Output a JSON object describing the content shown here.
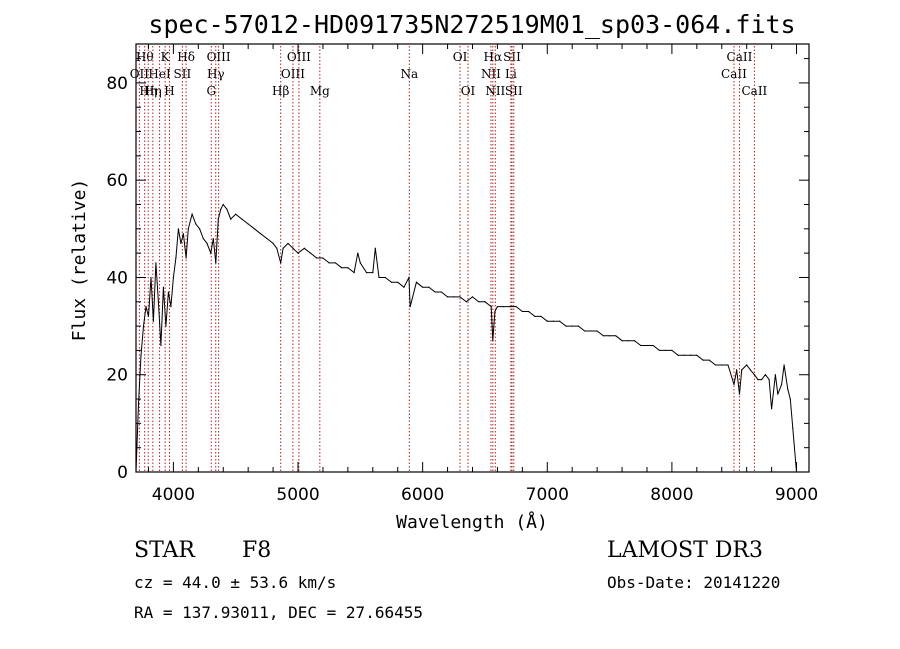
{
  "chart_data": {
    "type": "line",
    "title": "spec-57012-HD091735N272519M01_sp03-064.fits",
    "xlabel": "Wavelength (Å)",
    "ylabel": "Flux (relative)",
    "xlim": [
      3700,
      9100
    ],
    "ylim": [
      0,
      88
    ],
    "x_ticks": [
      4000,
      5000,
      6000,
      7000,
      8000,
      9000
    ],
    "y_ticks": [
      0,
      20,
      40,
      60,
      80
    ],
    "grid": false,
    "series": [
      {
        "name": "flux",
        "x": [
          3700,
          3720,
          3740,
          3760,
          3780,
          3800,
          3820,
          3840,
          3860,
          3880,
          3900,
          3920,
          3940,
          3960,
          3980,
          4000,
          4020,
          4040,
          4060,
          4080,
          4102,
          4120,
          4150,
          4180,
          4210,
          4240,
          4270,
          4300,
          4320,
          4340,
          4360,
          4380,
          4400,
          4430,
          4460,
          4500,
          4550,
          4600,
          4650,
          4700,
          4750,
          4800,
          4830,
          4861,
          4880,
          4920,
          4960,
          5000,
          5050,
          5100,
          5150,
          5200,
          5250,
          5300,
          5350,
          5400,
          5450,
          5480,
          5500,
          5550,
          5600,
          5620,
          5650,
          5700,
          5750,
          5800,
          5850,
          5890,
          5900,
          5950,
          6000,
          6050,
          6100,
          6150,
          6200,
          6250,
          6300,
          6350,
          6400,
          6450,
          6500,
          6550,
          6563,
          6580,
          6600,
          6650,
          6700,
          6750,
          6800,
          6850,
          6900,
          6950,
          7000,
          7050,
          7100,
          7150,
          7200,
          7250,
          7300,
          7350,
          7400,
          7450,
          7500,
          7550,
          7600,
          7650,
          7700,
          7750,
          7800,
          7850,
          7900,
          7950,
          8000,
          8050,
          8100,
          8150,
          8200,
          8250,
          8300,
          8350,
          8400,
          8450,
          8498,
          8520,
          8542,
          8560,
          8600,
          8630,
          8662,
          8690,
          8720,
          8750,
          8780,
          8800,
          8830,
          8850,
          8880,
          8900,
          8930,
          8950,
          8970,
          9000
        ],
        "values": [
          0,
          14,
          24,
          30,
          34,
          32,
          40,
          31,
          43,
          35,
          26,
          38,
          30,
          37,
          34,
          40,
          44,
          50,
          47,
          49,
          44,
          50,
          53,
          51,
          50,
          48,
          47,
          45,
          48,
          43,
          52,
          54,
          55,
          54,
          52,
          53,
          52,
          51,
          50,
          49,
          48,
          47,
          46,
          43,
          46,
          47,
          46,
          45,
          46,
          45,
          44,
          44,
          43,
          43,
          42,
          42,
          41,
          45,
          43,
          41,
          41,
          46,
          40,
          40,
          39,
          39,
          38,
          40,
          34,
          39,
          38,
          38,
          37,
          37,
          36,
          36,
          36,
          35,
          36,
          35,
          35,
          34,
          27,
          33,
          34,
          34,
          34,
          34,
          33,
          33,
          32,
          32,
          31,
          31,
          31,
          30,
          30,
          30,
          29,
          29,
          29,
          28,
          28,
          28,
          27,
          27,
          27,
          26,
          26,
          26,
          25,
          25,
          25,
          24,
          24,
          24,
          24,
          23,
          23,
          22,
          22,
          22,
          18,
          21,
          16,
          21,
          22,
          21,
          20,
          19,
          19,
          20,
          19,
          13,
          20,
          16,
          18,
          22,
          17,
          15,
          9,
          0
        ]
      }
    ],
    "lines": [
      {
        "wavelength": 3727,
        "label": "OII",
        "row": 2
      },
      {
        "wavelength": 3770,
        "label": "Hθ",
        "row": 1
      },
      {
        "wavelength": 3798,
        "label": "Hη",
        "row": 3
      },
      {
        "wavelength": 3835,
        "label": "Hη",
        "row": 3
      },
      {
        "wavelength": 3889,
        "label": "HeI",
        "row": 2
      },
      {
        "wavelength": 3934,
        "label": "K",
        "row": 1
      },
      {
        "wavelength": 3969,
        "label": "H",
        "row": 3
      },
      {
        "wavelength": 4072,
        "label": "SII",
        "row": 2
      },
      {
        "wavelength": 4102,
        "label": "Hδ",
        "row": 1
      },
      {
        "wavelength": 4304,
        "label": "G",
        "row": 3
      },
      {
        "wavelength": 4340,
        "label": "Hγ",
        "row": 2
      },
      {
        "wavelength": 4363,
        "label": "OIII",
        "row": 1
      },
      {
        "wavelength": 4861,
        "label": "Hβ",
        "row": 3
      },
      {
        "wavelength": 4959,
        "label": "OIII",
        "row": 2
      },
      {
        "wavelength": 5007,
        "label": "OIII",
        "row": 1
      },
      {
        "wavelength": 5175,
        "label": "Mg",
        "row": 3
      },
      {
        "wavelength": 5893,
        "label": "Na",
        "row": 2
      },
      {
        "wavelength": 6300,
        "label": "OI",
        "row": 1
      },
      {
        "wavelength": 6364,
        "label": "OI",
        "row": 3
      },
      {
        "wavelength": 6548,
        "label": "NII",
        "row": 2
      },
      {
        "wavelength": 6563,
        "label": "Hα",
        "row": 1
      },
      {
        "wavelength": 6583,
        "label": "NII",
        "row": 3
      },
      {
        "wavelength": 6708,
        "label": "Li",
        "row": 2
      },
      {
        "wavelength": 6717,
        "label": "SII",
        "row": 1
      },
      {
        "wavelength": 6731,
        "label": "SII",
        "row": 3
      },
      {
        "wavelength": 8498,
        "label": "CaII",
        "row": 2
      },
      {
        "wavelength": 8542,
        "label": "CaII",
        "row": 1
      },
      {
        "wavelength": 8662,
        "label": "CaII",
        "row": 3
      }
    ]
  },
  "info": {
    "object_class": "STAR",
    "subclass": "F8",
    "survey": "LAMOST DR3",
    "cz": "cz = 44.0 ± 53.6 km/s",
    "obs_date": "Obs-Date: 20141220",
    "coords": "RA = 137.93011, DEC =  27.66455"
  }
}
